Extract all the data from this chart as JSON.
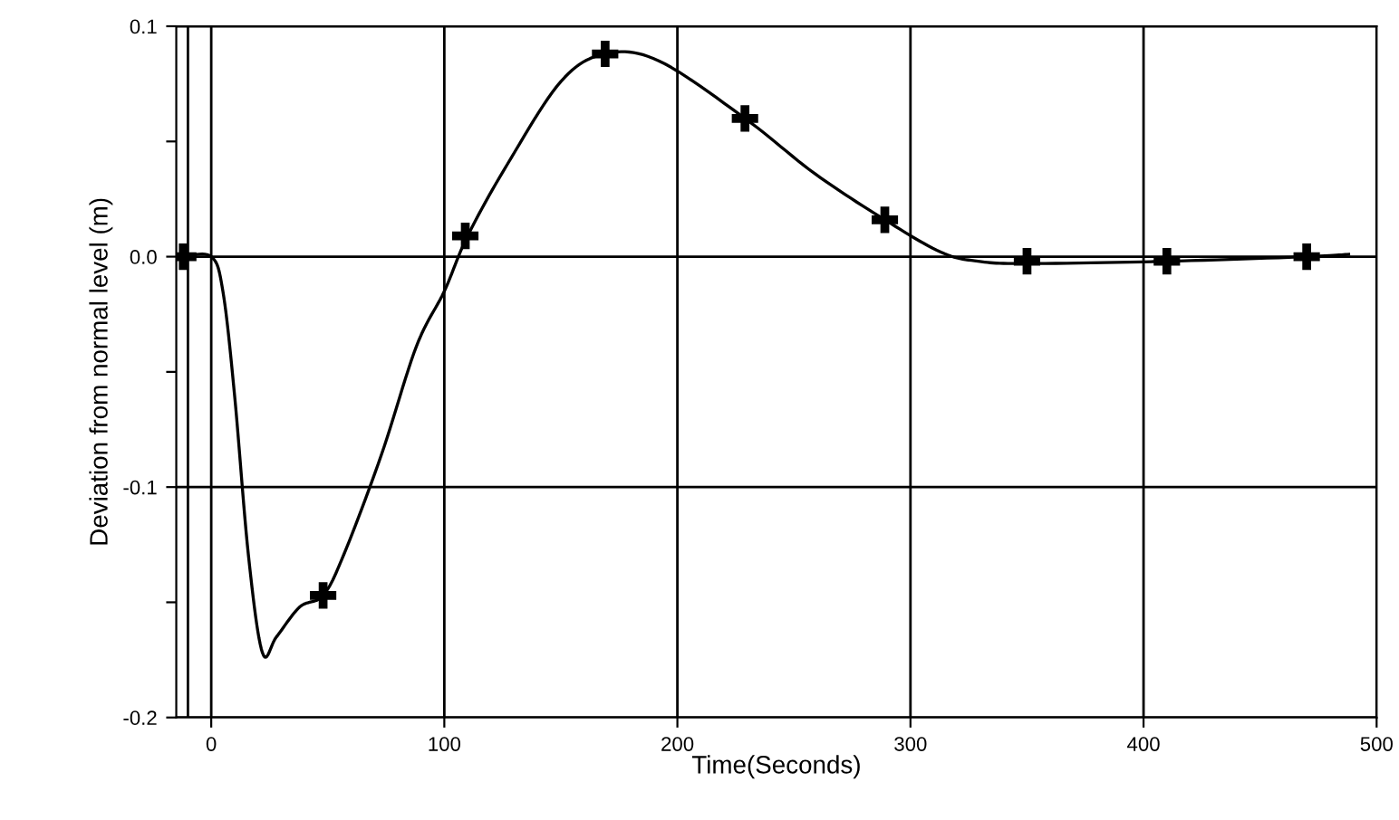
{
  "chart_data": {
    "type": "line",
    "xlabel": "Time(Seconds)",
    "ylabel": "Deviation from normal level (m)",
    "xlim": [
      -15,
      500
    ],
    "ylim": [
      -0.2,
      0.1
    ],
    "xticks": [
      0,
      100,
      200,
      300,
      400,
      500
    ],
    "yticks": [
      {
        "value": -0.2,
        "label": "-0.2"
      },
      {
        "value": -0.15,
        "label": null
      },
      {
        "value": -0.1,
        "label": "-0.1"
      },
      {
        "value": -0.05,
        "label": null
      },
      {
        "value": 0,
        "label": "0.0"
      },
      {
        "value": 0.05,
        "label": null
      },
      {
        "value": 0.1,
        "label": "0.1"
      }
    ],
    "grid": true,
    "legend": false,
    "ref_lines": [
      {
        "axis": "x",
        "value": -10,
        "color": "#000000"
      }
    ],
    "series": [
      {
        "color": "#000000",
        "marker": "none",
        "x": [
          -12,
          0,
          5,
          10,
          16,
          22,
          28,
          38,
          48,
          57,
          73,
          88,
          100,
          110,
          127,
          150,
          169,
          192,
          229,
          259,
          289,
          313,
          329,
          350,
          410,
          470,
          488
        ],
        "values": [
          0,
          0,
          -0.015,
          -0.06,
          -0.13,
          -0.172,
          -0.165,
          -0.152,
          -0.147,
          -0.129,
          -0.086,
          -0.039,
          -0.015,
          0.009,
          0.04,
          0.076,
          0.088,
          0.085,
          0.06,
          0.036,
          0.016,
          0.002,
          -0.002,
          -0.003,
          -0.002,
          0,
          0.001
        ]
      },
      {
        "type": "scatter",
        "color": "#000000",
        "marker": "cross",
        "x": [
          -12,
          48,
          109,
          169,
          229,
          289,
          350,
          410,
          470
        ],
        "values": [
          0,
          -0.147,
          0.009,
          0.088,
          0.06,
          0.016,
          -0.002,
          -0.002,
          0
        ]
      }
    ]
  }
}
